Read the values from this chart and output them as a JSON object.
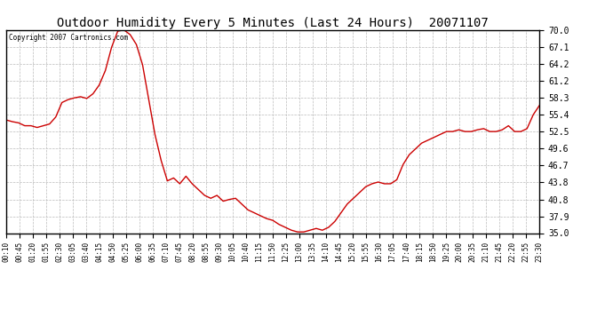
{
  "title": "Outdoor Humidity Every 5 Minutes (Last 24 Hours)  20071107",
  "copyright": "Copyright 2007 Cartronics.com",
  "yticks": [
    35.0,
    37.9,
    40.8,
    43.8,
    46.7,
    49.6,
    52.5,
    55.4,
    58.3,
    61.2,
    64.2,
    67.1,
    70.0
  ],
  "ylim": [
    35.0,
    70.0
  ],
  "line_color": "#cc0000",
  "bg_color": "#ffffff",
  "grid_color": "#bbbbbb",
  "xtick_labels": [
    "00:10",
    "00:45",
    "01:20",
    "01:55",
    "02:30",
    "03:05",
    "03:40",
    "04:15",
    "04:50",
    "05:25",
    "06:00",
    "06:35",
    "07:10",
    "07:45",
    "08:20",
    "08:55",
    "09:30",
    "10:05",
    "10:40",
    "11:15",
    "11:50",
    "12:25",
    "13:00",
    "13:35",
    "14:10",
    "14:45",
    "15:20",
    "15:55",
    "16:30",
    "17:05",
    "17:40",
    "18:15",
    "18:50",
    "19:25",
    "20:00",
    "20:35",
    "21:10",
    "21:45",
    "22:20",
    "22:55",
    "23:30"
  ],
  "humidity_values": [
    54.5,
    54.2,
    54.0,
    53.5,
    53.5,
    53.2,
    53.5,
    53.8,
    55.0,
    57.5,
    58.0,
    58.3,
    58.5,
    58.2,
    59.0,
    60.5,
    63.0,
    67.0,
    69.8,
    70.0,
    69.2,
    67.5,
    64.0,
    58.0,
    52.0,
    47.5,
    44.0,
    44.5,
    43.5,
    44.8,
    43.5,
    42.5,
    41.5,
    41.0,
    41.5,
    40.5,
    40.8,
    41.0,
    40.0,
    39.0,
    38.5,
    38.0,
    37.5,
    37.2,
    36.5,
    36.0,
    35.5,
    35.2,
    35.2,
    35.5,
    35.8,
    35.5,
    36.0,
    37.0,
    38.5,
    40.0,
    41.0,
    42.0,
    43.0,
    43.5,
    43.8,
    43.5,
    43.5,
    44.2,
    46.8,
    48.5,
    49.5,
    50.5,
    51.0,
    51.5,
    52.0,
    52.5,
    52.5,
    52.8,
    52.5,
    52.5,
    52.8,
    53.0,
    52.5,
    52.5,
    52.8,
    53.5,
    52.5,
    52.5,
    53.0,
    55.4,
    57.0
  ]
}
